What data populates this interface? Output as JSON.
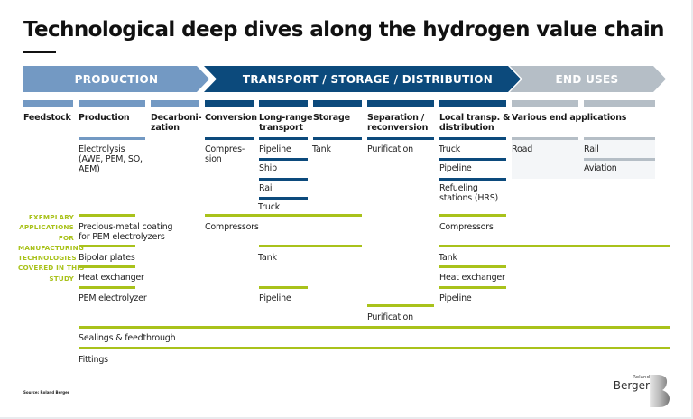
{
  "title": "Technological deep dives along the hydrogen value chain",
  "phases": [
    "PRODUCTION",
    "TRANSPORT / STORAGE / DISTRIBUTION",
    "END USES"
  ],
  "columns": {
    "feedstock": "Feedstock",
    "production": "Production",
    "decarbonization": "Decarboni-\nzation",
    "conversion": "Conversion",
    "long_range": "Long-range\ntransport",
    "storage": "Storage",
    "separation": "Separation /\nreconversion",
    "local": "Local transp. &\ndistribution",
    "end": "Various end applications"
  },
  "technologies": {
    "production": "Electrolysis\n(AWE, PEM, SO,\nAEM)",
    "conversion": "Compres-\nsion",
    "long_range": [
      "Pipeline",
      "Ship",
      "Rail",
      "Truck"
    ],
    "storage": "Tank",
    "separation": "Purification",
    "local": [
      "Truck",
      "Pipeline",
      "Refueling\nstations (HRS)"
    ],
    "end_left": "Road",
    "end_right": [
      "Rail",
      "Aviation"
    ]
  },
  "side_label": "EXEMPLARY\nAPPLICATIONS\nFOR\nMANUFACTURING\nTECHNOLOGIES\nCOVERED IN THIS\nSTUDY",
  "applications": {
    "precious": "Precious-metal coating\nfor PEM electrolyzers",
    "compressors1": "Compressors",
    "compressors2": "Compressors",
    "bipolar": "Bipolar plates",
    "tank1": "Tank",
    "tank2": "Tank",
    "heat1": "Heat exchanger",
    "heat2": "Heat exchanger",
    "pem": "PEM electrolyzer",
    "pipeline1": "Pipeline",
    "pipeline2": "Pipeline",
    "purification": "Purification",
    "sealings": "Sealings & feedthrough",
    "fittings": "Fittings"
  },
  "source": "Source: Roland Berger",
  "logo": {
    "top": "Roland",
    "bottom": "Berger"
  },
  "colors": {
    "production": "#7399c3",
    "transport": "#0c4a7c",
    "end": "#b5bec6",
    "green": "#a9c21b"
  }
}
